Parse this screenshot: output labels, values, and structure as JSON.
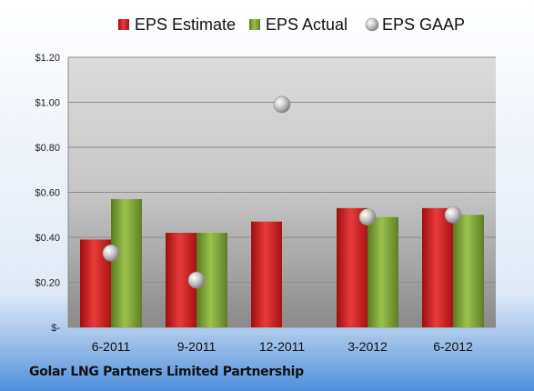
{
  "chart_data": {
    "type": "bar",
    "categories": [
      "6-2011",
      "9-2011",
      "12-2011",
      "3-2012",
      "6-2012"
    ],
    "series": [
      {
        "name": "EPS Estimate",
        "type": "bar",
        "color": "#d11f1f",
        "values": [
          0.39,
          0.42,
          0.47,
          0.53,
          0.53
        ]
      },
      {
        "name": "EPS Actual",
        "type": "bar",
        "color": "#7c9e32",
        "values": [
          0.57,
          0.42,
          null,
          0.49,
          0.5
        ]
      },
      {
        "name": "EPS GAAP",
        "type": "scatter",
        "color": "#b5b5b5",
        "values": [
          0.33,
          0.21,
          0.99,
          0.49,
          0.5
        ]
      }
    ],
    "yticks": [
      "$-",
      "$0.20",
      "$0.40",
      "$0.60",
      "$0.80",
      "$1.00",
      "$1.20"
    ],
    "ylim": [
      0,
      1.2
    ],
    "grid": true,
    "legend": "top"
  },
  "footer": "Golar LNG Partners Limited Partnership"
}
